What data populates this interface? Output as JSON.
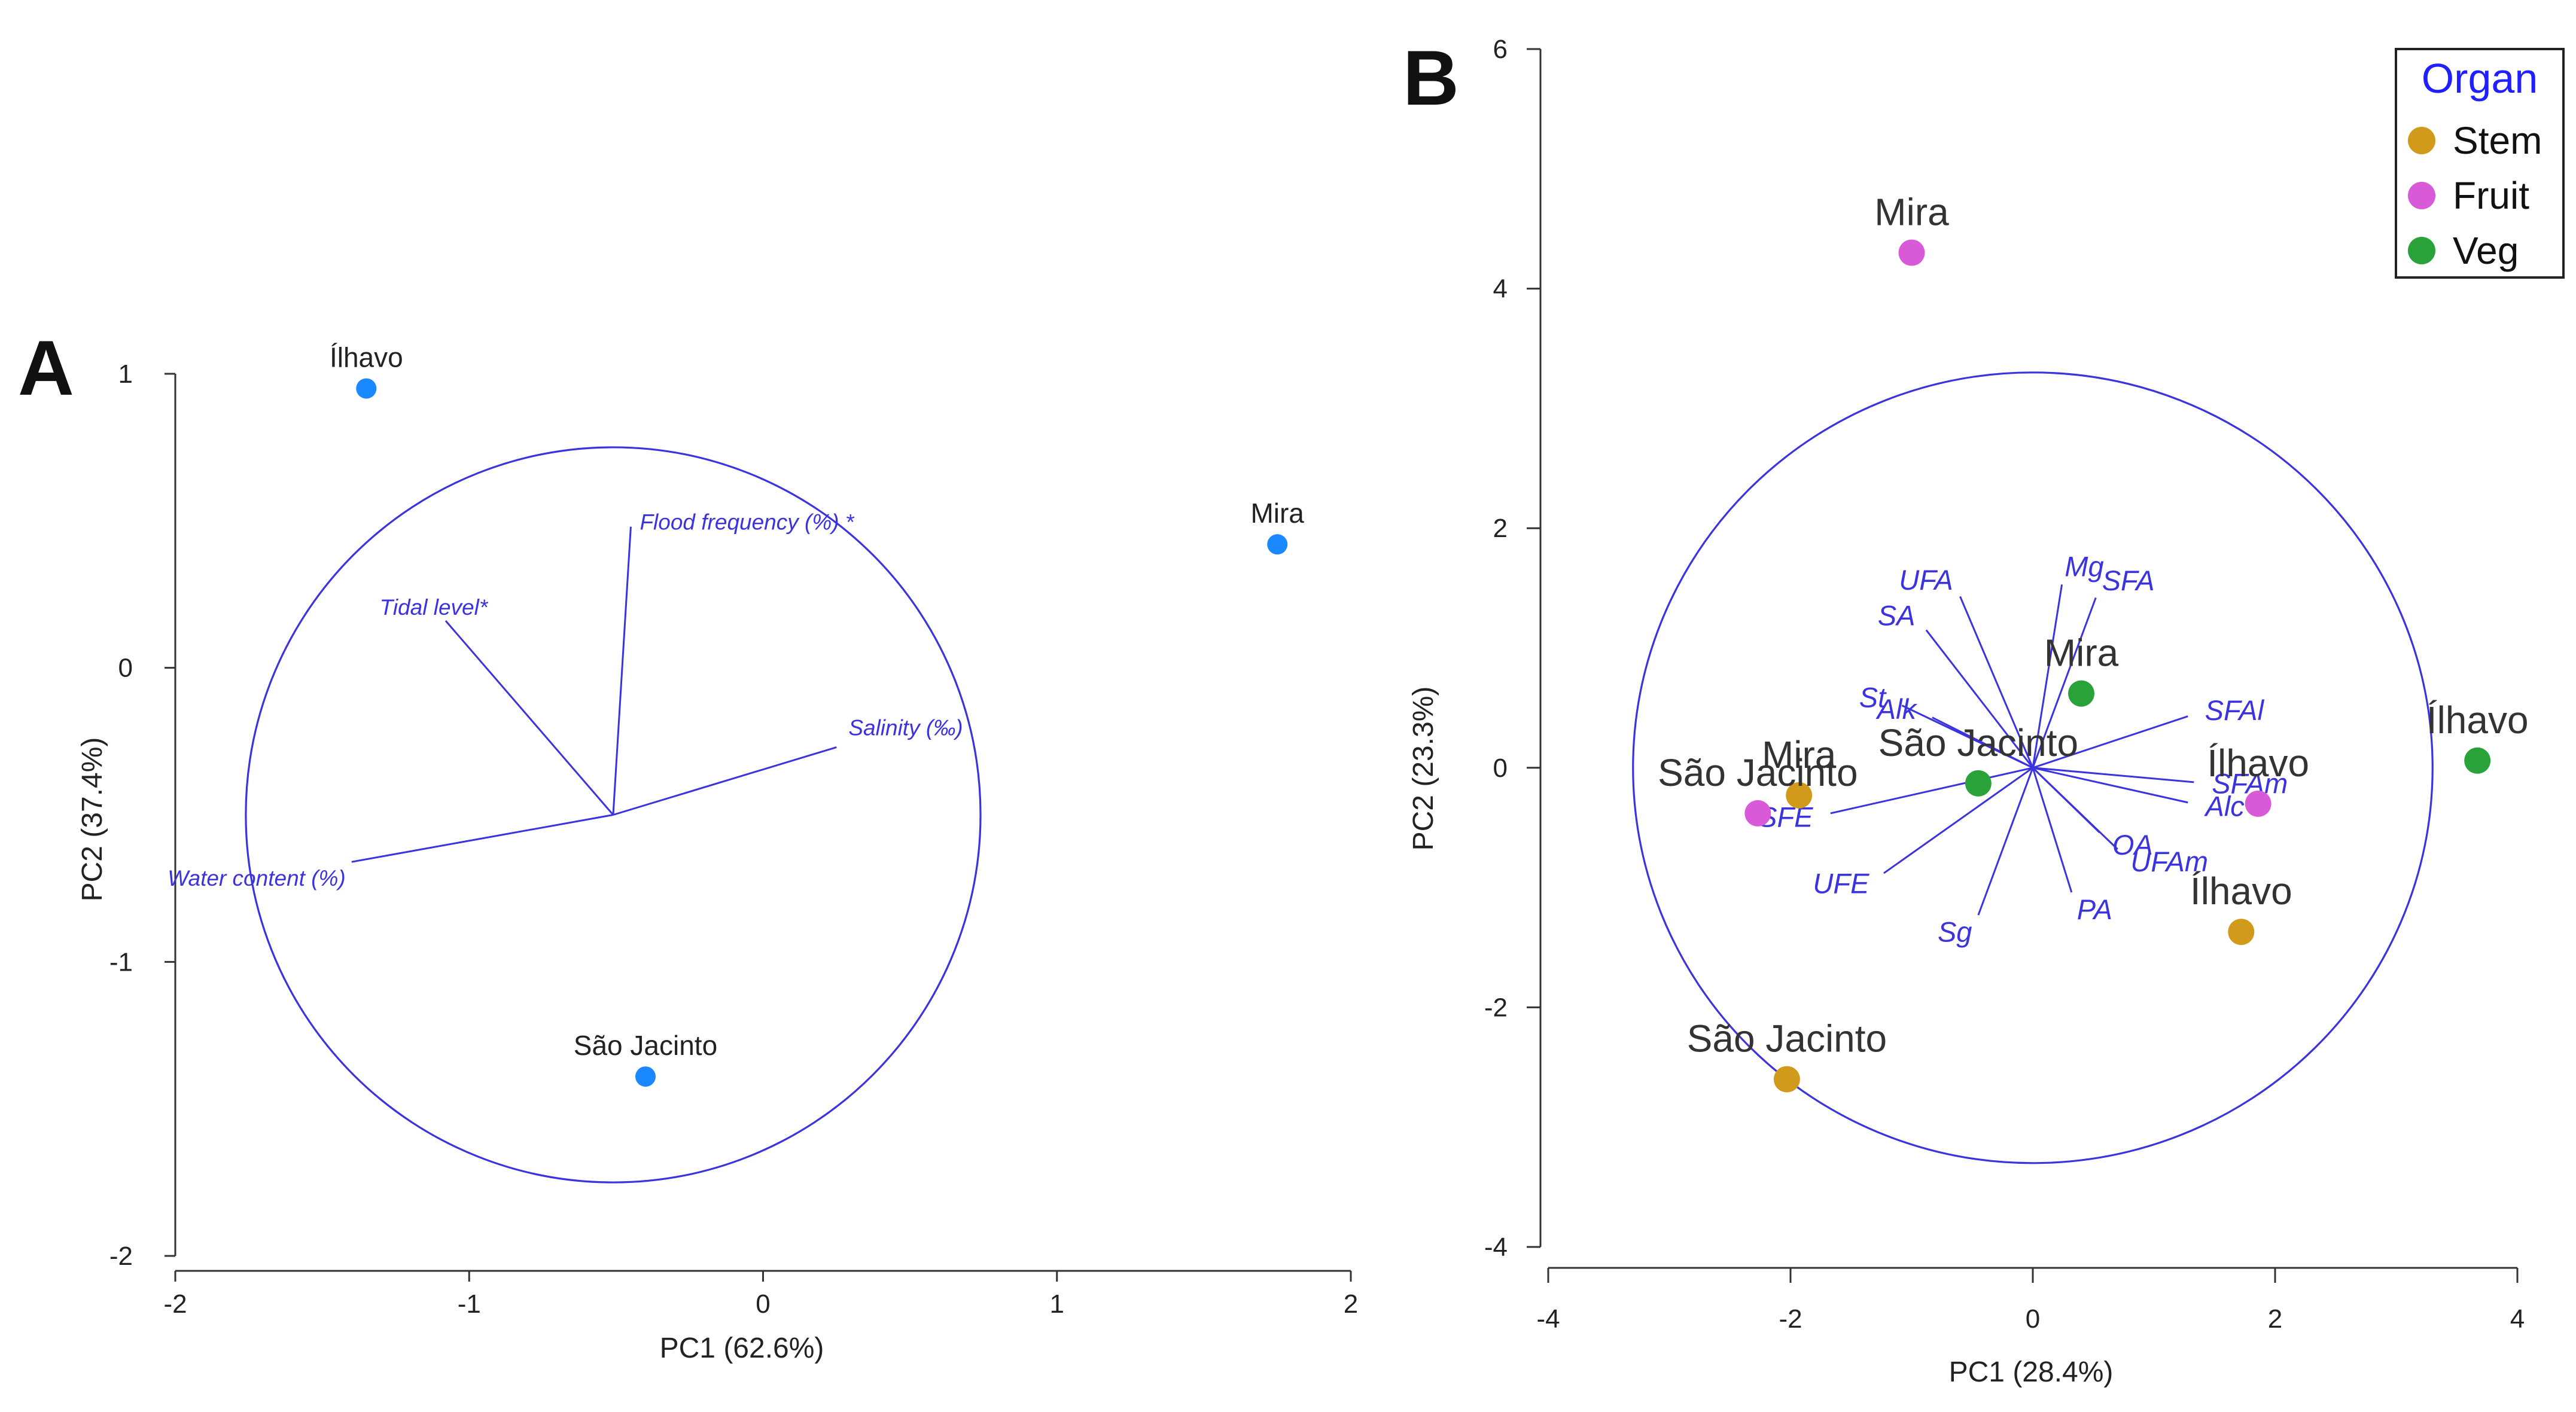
{
  "chart_data": [
    {
      "panel": "A",
      "type": "scatter",
      "subtype": "pca-biplot",
      "xlabel": "PC1 (62.6%)",
      "ylabel": "PC2 (37.4%)",
      "xlim": [
        -2,
        2
      ],
      "ylim": [
        -2,
        1
      ],
      "xticks": [
        -2,
        -1,
        0,
        1,
        2
      ],
      "xtick_labels": [
        "-2",
        "-1",
        "0",
        "1",
        "2"
      ],
      "yticks": [
        -2,
        -1,
        0,
        1
      ],
      "ytick_labels": [
        "-2",
        "-1",
        "0",
        "1"
      ],
      "point_color": "#1a88ff",
      "points": [
        {
          "label": "Ílhavo",
          "x": -1.35,
          "y": 0.95
        },
        {
          "label": "Mira",
          "x": 1.75,
          "y": 0.42
        },
        {
          "label": "São Jacinto",
          "x": -0.4,
          "y": -1.39
        }
      ],
      "correlation_circle": {
        "center": [
          -0.51,
          -0.5
        ],
        "radius": 1.25
      },
      "vectors": [
        {
          "label": "Flood frequency (%) *",
          "x": -0.45,
          "y": 0.48
        },
        {
          "label": "Tidal level*",
          "x": -1.08,
          "y": 0.16
        },
        {
          "label": "Salinity (‰)",
          "x": 0.25,
          "y": -0.27
        },
        {
          "label": "Water content (%)",
          "x": -1.4,
          "y": -0.66
        }
      ]
    },
    {
      "panel": "B",
      "type": "scatter",
      "subtype": "pca-biplot",
      "xlabel": "PC1 (28.4%)",
      "ylabel": "PC2 (23.3%)",
      "xlim": [
        -4,
        4
      ],
      "ylim": [
        -4,
        6
      ],
      "xticks": [
        -4,
        -2,
        0,
        2,
        4
      ],
      "xtick_labels": [
        "-4",
        "-2",
        "0",
        "2",
        "4"
      ],
      "yticks": [
        -4,
        -2,
        0,
        2,
        4,
        6
      ],
      "ytick_labels": [
        "-4",
        "-2",
        "0",
        "2",
        "4",
        "6"
      ],
      "legend": {
        "title": "Organ",
        "position": "top-right",
        "entries": [
          {
            "name": "Stem",
            "color": "#d19a1a"
          },
          {
            "name": "Fruit",
            "color": "#d85ad8"
          },
          {
            "name": "Veg",
            "color": "#2aa23a"
          }
        ]
      },
      "points": [
        {
          "label": "Mira",
          "organ": "Fruit",
          "x": -1.0,
          "y": 4.3
        },
        {
          "label": "Ílhavo",
          "organ": "Veg",
          "x": 3.67,
          "y": 0.06
        },
        {
          "label": "Mira",
          "organ": "Veg",
          "x": 0.4,
          "y": 0.62
        },
        {
          "label": "São Jacinto",
          "organ": "Veg",
          "x": -0.45,
          "y": -0.13
        },
        {
          "label": "Mira",
          "organ": "Stem",
          "x": -1.93,
          "y": -0.23
        },
        {
          "label": "São Jacinto",
          "organ": "Fruit",
          "x": -2.27,
          "y": -0.38
        },
        {
          "label": "Ílhavo",
          "organ": "Fruit",
          "x": 1.86,
          "y": -0.3
        },
        {
          "label": "Ílhavo",
          "organ": "Stem",
          "x": 1.72,
          "y": -1.37
        },
        {
          "label": "São Jacinto",
          "organ": "Stem",
          "x": -2.03,
          "y": -2.6
        }
      ],
      "correlation_circle": {
        "center": [
          0,
          0
        ],
        "radius": 3.3
      },
      "vectors": [
        {
          "label": "UFA",
          "x": -0.6,
          "y": 1.43
        },
        {
          "label": "SA",
          "x": -0.88,
          "y": 1.15
        },
        {
          "label": "Mg",
          "x": 0.24,
          "y": 1.53
        },
        {
          "label": "SFA",
          "x": 0.52,
          "y": 1.42
        },
        {
          "label": "St",
          "x": -1.08,
          "y": 0.52
        },
        {
          "label": "Alk",
          "x": -0.83,
          "y": 0.42
        },
        {
          "label": "SFAl",
          "x": 1.28,
          "y": 0.43
        },
        {
          "label": "SFAm",
          "x": 1.33,
          "y": -0.12
        },
        {
          "label": "Alc",
          "x": 1.28,
          "y": -0.29
        },
        {
          "label": "OA",
          "x": 0.55,
          "y": -0.54
        },
        {
          "label": "UFAm",
          "x": 0.7,
          "y": -0.68
        },
        {
          "label": "PA",
          "x": 0.32,
          "y": -1.04
        },
        {
          "label": "SFE",
          "x": -1.67,
          "y": -0.38
        },
        {
          "label": "UFE",
          "x": -1.23,
          "y": -0.88
        },
        {
          "label": "Sg",
          "x": -0.45,
          "y": -1.23
        }
      ]
    }
  ]
}
